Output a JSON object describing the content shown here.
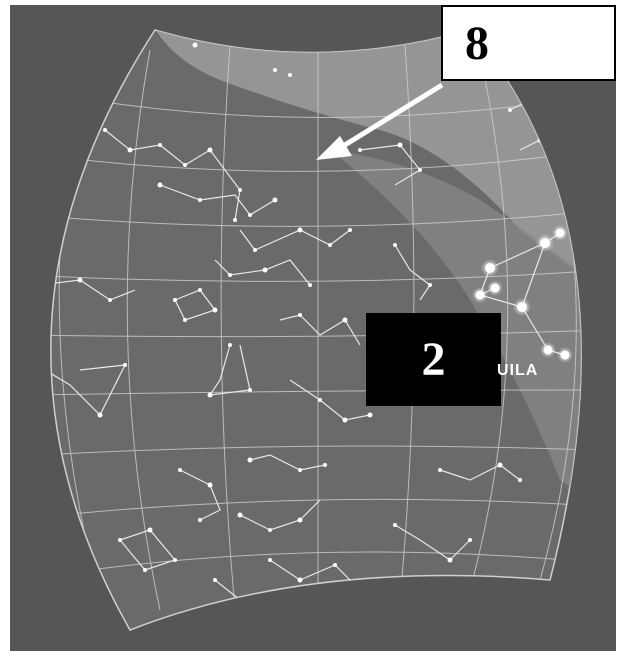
{
  "image": {
    "description_free": true,
    "colors": {
      "frame": "#565656",
      "sky": "#6e6e6e",
      "milky_way": "#a9a9a9",
      "grid": "#d8d8d8",
      "star": "#ffffff",
      "highlight_star": "#ffffff"
    }
  },
  "labels": {
    "box_8": "8",
    "box_2": "2",
    "constellation": "UILA"
  },
  "icons": {
    "arrow": "arrow-icon"
  }
}
